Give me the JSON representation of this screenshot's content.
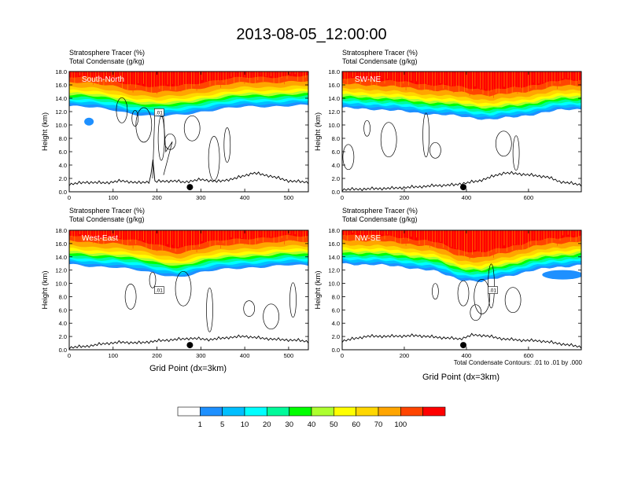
{
  "title": "2013-08-05_12:00:00",
  "chart_data": {
    "type": "heatmap",
    "title": "2013-08-05_12:00:00",
    "fill_field": "Stratosphere Tracer",
    "fill_units": "(%)",
    "contour_field": "Total Condensate",
    "contour_units": "(g/kg)",
    "contour_note": "Total Condensate Contours: .01 to .01 by .000",
    "contour_label": ".01",
    "ylabel": "Height (km)",
    "xlabel": "Grid Point (dx=3km)",
    "ylim": [
      0,
      18
    ],
    "yticks": [
      "0.0",
      "2.0",
      "4.0",
      "6.0",
      "8.0",
      "10.0",
      "12.0",
      "14.0",
      "16.0",
      "18.0"
    ],
    "colorbar": {
      "levels": [
        "1",
        "5",
        "10",
        "20",
        "30",
        "40",
        "50",
        "60",
        "70",
        "100"
      ],
      "colors": [
        "#ffffff",
        "#1e90ff",
        "#00bfff",
        "#00ffff",
        "#00fa9a",
        "#00ff00",
        "#adff2f",
        "#ffff00",
        "#ffd700",
        "#ffa500",
        "#ff4500",
        "#ff0000"
      ]
    },
    "panels": [
      {
        "label": "South-North",
        "xlim": [
          0,
          545
        ],
        "xticks": [
          "0",
          "100",
          "200",
          "300",
          "400",
          "500"
        ],
        "xtick_values": [
          0,
          100,
          200,
          300,
          400,
          500
        ],
        "marker_x": 275,
        "band_bottom_km": [
          [
            0,
            12.8
          ],
          [
            50,
            12.6
          ],
          [
            100,
            12.3
          ],
          [
            150,
            11.6
          ],
          [
            200,
            11.2
          ],
          [
            250,
            11.5
          ],
          [
            300,
            12.0
          ],
          [
            350,
            12.4
          ],
          [
            400,
            12.7
          ],
          [
            450,
            12.8
          ],
          [
            500,
            12.9
          ],
          [
            545,
            12.9
          ]
        ],
        "terrain_km": [
          [
            0,
            1.1
          ],
          [
            40,
            1.4
          ],
          [
            80,
            1.3
          ],
          [
            120,
            1.6
          ],
          [
            160,
            1.3
          ],
          [
            185,
            1.5
          ],
          [
            190,
            5.5
          ],
          [
            195,
            1.5
          ],
          [
            240,
            1.6
          ],
          [
            260,
            1.4
          ],
          [
            300,
            1.8
          ],
          [
            340,
            1.5
          ],
          [
            380,
            2.0
          ],
          [
            420,
            2.8
          ],
          [
            460,
            2.3
          ],
          [
            500,
            1.6
          ],
          [
            545,
            1.4
          ]
        ],
        "contour_label_x": 205,
        "contour_label_km": 11.9
      },
      {
        "label": "SW-NE",
        "xlim": [
          0,
          770
        ],
        "xticks": [
          "0",
          "200",
          "400",
          "600"
        ],
        "xtick_values": [
          0,
          200,
          400,
          600
        ],
        "marker_x": 390,
        "band_bottom_km": [
          [
            0,
            12.5
          ],
          [
            100,
            12.4
          ],
          [
            200,
            12.0
          ],
          [
            300,
            11.6
          ],
          [
            400,
            11.2
          ],
          [
            480,
            10.8
          ],
          [
            560,
            11.2
          ],
          [
            640,
            11.8
          ],
          [
            700,
            12.2
          ],
          [
            770,
            12.4
          ]
        ],
        "terrain_km": [
          [
            0,
            0.3
          ],
          [
            80,
            0.4
          ],
          [
            160,
            0.5
          ],
          [
            240,
            0.7
          ],
          [
            300,
            0.9
          ],
          [
            360,
            1.0
          ],
          [
            400,
            1.3
          ],
          [
            440,
            1.6
          ],
          [
            480,
            2.2
          ],
          [
            520,
            2.8
          ],
          [
            560,
            2.7
          ],
          [
            600,
            2.5
          ],
          [
            660,
            2.2
          ],
          [
            700,
            1.5
          ],
          [
            770,
            1.0
          ]
        ]
      },
      {
        "label": "West-East",
        "xlim": [
          0,
          545
        ],
        "xticks": [
          "0",
          "100",
          "200",
          "300",
          "400",
          "500"
        ],
        "xtick_values": [
          0,
          100,
          200,
          300,
          400,
          500
        ],
        "marker_x": 275,
        "band_bottom_km": [
          [
            0,
            12.8
          ],
          [
            50,
            12.6
          ],
          [
            100,
            12.5
          ],
          [
            150,
            12.0
          ],
          [
            200,
            11.4
          ],
          [
            250,
            11.0
          ],
          [
            300,
            11.6
          ],
          [
            350,
            12.1
          ],
          [
            400,
            12.4
          ],
          [
            450,
            12.5
          ],
          [
            500,
            12.7
          ],
          [
            545,
            12.7
          ]
        ],
        "terrain_km": [
          [
            0,
            0.3
          ],
          [
            40,
            0.5
          ],
          [
            80,
            0.9
          ],
          [
            120,
            1.1
          ],
          [
            160,
            1.0
          ],
          [
            200,
            1.3
          ],
          [
            240,
            1.5
          ],
          [
            280,
            1.7
          ],
          [
            320,
            1.5
          ],
          [
            360,
            1.8
          ],
          [
            400,
            2.0
          ],
          [
            440,
            1.7
          ],
          [
            480,
            1.5
          ],
          [
            520,
            1.4
          ],
          [
            545,
            1.2
          ]
        ],
        "contour_label_x": 205,
        "contour_label_km": 9.0
      },
      {
        "label": "NW-SE",
        "xlim": [
          0,
          770
        ],
        "xticks": [
          "0",
          "200",
          "400",
          "600"
        ],
        "xtick_values": [
          0,
          200,
          400,
          600
        ],
        "marker_x": 390,
        "band_bottom_km": [
          [
            0,
            13.0
          ],
          [
            100,
            12.8
          ],
          [
            200,
            12.5
          ],
          [
            300,
            11.8
          ],
          [
            380,
            10.6
          ],
          [
            450,
            10.2
          ],
          [
            520,
            11.0
          ],
          [
            600,
            11.8
          ],
          [
            680,
            12.4
          ],
          [
            770,
            12.8
          ]
        ],
        "terrain_km": [
          [
            0,
            1.3
          ],
          [
            80,
            2.0
          ],
          [
            160,
            2.0
          ],
          [
            240,
            2.1
          ],
          [
            320,
            1.8
          ],
          [
            380,
            1.6
          ],
          [
            420,
            2.2
          ],
          [
            460,
            2.1
          ],
          [
            520,
            1.6
          ],
          [
            580,
            1.4
          ],
          [
            640,
            1.3
          ],
          [
            700,
            0.9
          ],
          [
            770,
            0.4
          ]
        ],
        "contour_label_x": 485,
        "contour_label_km": 9.0
      }
    ]
  }
}
